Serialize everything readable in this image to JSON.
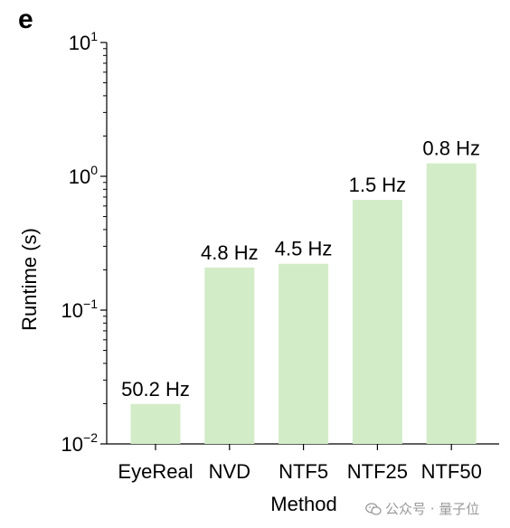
{
  "panel_label": "e",
  "watermark": {
    "text": "公众号 · 量子位",
    "icon": "wechat-icon"
  },
  "colors": {
    "bar": "#d3ecc8",
    "axis": "#000000",
    "text": "#000000"
  },
  "chart_data": {
    "type": "bar",
    "xlabel": "Method",
    "ylabel": "Runtime (s)",
    "yscale": "log",
    "ylim": [
      0.01,
      10
    ],
    "yticks": [
      {
        "value": 0.01,
        "base": "10",
        "exp": "−2"
      },
      {
        "value": 0.1,
        "base": "10",
        "exp": "−1"
      },
      {
        "value": 1,
        "base": "10",
        "exp": "0"
      },
      {
        "value": 10,
        "base": "10",
        "exp": "1"
      }
    ],
    "categories": [
      "EyeReal",
      "NVD",
      "NTF5",
      "NTF25",
      "NTF50"
    ],
    "values": [
      0.0199,
      0.208,
      0.222,
      0.667,
      1.25
    ],
    "data_labels": [
      "50.2 Hz",
      "4.8 Hz",
      "4.5 Hz",
      "1.5 Hz",
      "0.8 Hz"
    ],
    "grid": false,
    "legend": "none"
  }
}
